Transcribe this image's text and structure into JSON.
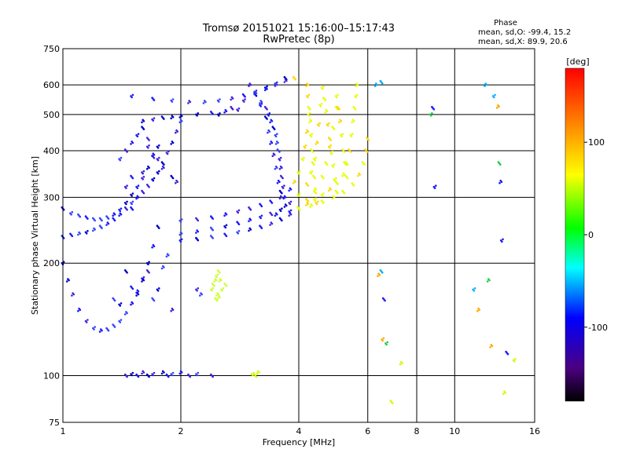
{
  "chart_data": {
    "type": "scatter",
    "title": "Tromsø 20151021 15:16:00–15:17:43",
    "subtitle": "RwPretec (8p)",
    "xlabel": "Frequency [MHz]",
    "ylabel": "Stationary phase Virtual Height [km]",
    "x_scale": "log2",
    "y_scale": "log",
    "xlim": [
      1,
      16
    ],
    "ylim": [
      75,
      750
    ],
    "x_ticks": [
      1,
      2,
      4,
      6,
      8,
      10,
      16
    ],
    "x_tick_labels": [
      "1",
      "2",
      "4",
      "6",
      "8",
      "10",
      "16"
    ],
    "y_ticks": [
      75,
      100,
      200,
      300,
      400,
      500,
      600,
      750
    ],
    "y_tick_labels": [
      "75",
      "100",
      "200",
      "300",
      "400",
      "500",
      "600",
      "750"
    ],
    "grid": true,
    "stats": {
      "header": "Phase",
      "line_o": "mean, sd,O: -99.4, 15.2",
      "line_x": "mean, sd,X:  89.9, 20.6"
    },
    "colorbar": {
      "label": "[deg]",
      "range": [
        -180,
        180
      ],
      "ticks": [
        -100,
        0,
        100
      ],
      "tick_labels": [
        "-100",
        "0",
        "100"
      ],
      "colors": [
        "#000000",
        "#4b0082",
        "#0000ff",
        "#00ffff",
        "#00ff00",
        "#ffff00",
        "#ff8000",
        "#ff0000"
      ]
    },
    "series": [
      {
        "values": [
          [
            1.0,
            235
          ],
          [
            1.05,
            238
          ],
          [
            1.1,
            240
          ],
          [
            1.15,
            242
          ],
          [
            1.2,
            246
          ],
          [
            1.25,
            250
          ],
          [
            1.3,
            255
          ],
          [
            1.35,
            262
          ],
          [
            1.4,
            270
          ],
          [
            1.45,
            280
          ],
          [
            1.5,
            290
          ],
          [
            1.55,
            300
          ],
          [
            1.6,
            310
          ],
          [
            1.65,
            322
          ],
          [
            1.7,
            335
          ],
          [
            1.75,
            350
          ],
          [
            1.8,
            370
          ],
          [
            1.85,
            395
          ],
          [
            1.9,
            420
          ],
          [
            1.95,
            450
          ],
          [
            2.0,
            480
          ]
        ]
      },
      {
        "values": [
          [
            1.0,
            280
          ],
          [
            1.05,
            272
          ],
          [
            1.1,
            268
          ],
          [
            1.15,
            265
          ],
          [
            1.2,
            262
          ],
          [
            1.25,
            262
          ],
          [
            1.3,
            265
          ],
          [
            1.35,
            270
          ],
          [
            1.4,
            278
          ],
          [
            1.45,
            290
          ],
          [
            1.5,
            305
          ],
          [
            1.55,
            320
          ],
          [
            1.6,
            338
          ],
          [
            1.65,
            360
          ],
          [
            1.7,
            385
          ],
          [
            1.75,
            410
          ]
        ]
      },
      {
        "values": [
          [
            1.0,
            200
          ],
          [
            1.03,
            180
          ],
          [
            1.06,
            165
          ],
          [
            1.1,
            150
          ],
          [
            1.15,
            140
          ],
          [
            1.2,
            134
          ],
          [
            1.25,
            132
          ],
          [
            1.3,
            133
          ],
          [
            1.35,
            136
          ],
          [
            1.4,
            140
          ],
          [
            1.45,
            147
          ],
          [
            1.5,
            156
          ],
          [
            1.55,
            168
          ],
          [
            1.6,
            182
          ],
          [
            1.65,
            200
          ],
          [
            1.7,
            222
          ],
          [
            1.75,
            250
          ]
        ]
      },
      {
        "values": [
          [
            1.6,
            480
          ],
          [
            1.7,
            485
          ],
          [
            1.8,
            490
          ],
          [
            1.9,
            492
          ],
          [
            2.0,
            495
          ],
          [
            2.2,
            500
          ],
          [
            2.4,
            505
          ],
          [
            2.6,
            510
          ],
          [
            2.8,
            515
          ]
        ]
      },
      {
        "values": [
          [
            1.5,
            560
          ],
          [
            1.7,
            550
          ],
          [
            1.9,
            545
          ],
          [
            2.1,
            540
          ],
          [
            2.3,
            540
          ],
          [
            2.5,
            545
          ],
          [
            2.7,
            552
          ],
          [
            2.9,
            562
          ],
          [
            3.1,
            575
          ],
          [
            3.3,
            590
          ],
          [
            3.5,
            605
          ],
          [
            3.7,
            625
          ]
        ]
      },
      {
        "values": [
          [
            2.5,
            500
          ],
          [
            2.7,
            520
          ],
          [
            2.9,
            545
          ],
          [
            3.1,
            565
          ],
          [
            3.3,
            585
          ],
          [
            3.5,
            600
          ],
          [
            3.7,
            615
          ],
          [
            3.9,
            625
          ]
        ]
      },
      {
        "values": [
          [
            3.2,
            540
          ],
          [
            3.3,
            520
          ],
          [
            3.35,
            500
          ],
          [
            3.4,
            480
          ],
          [
            3.45,
            460
          ],
          [
            3.5,
            440
          ],
          [
            3.52,
            420
          ],
          [
            3.55,
            400
          ],
          [
            3.58,
            380
          ],
          [
            3.6,
            360
          ],
          [
            3.62,
            340
          ],
          [
            3.65,
            320
          ],
          [
            3.68,
            300
          ],
          [
            3.7,
            285
          ]
        ]
      },
      {
        "values": [
          [
            3.0,
            600
          ],
          [
            3.1,
            570
          ],
          [
            3.2,
            530
          ],
          [
            3.3,
            490
          ],
          [
            3.35,
            450
          ],
          [
            3.4,
            420
          ],
          [
            3.45,
            390
          ],
          [
            3.5,
            360
          ],
          [
            3.55,
            330
          ],
          [
            3.6,
            310
          ]
        ]
      },
      {
        "values": [
          [
            2.0,
            260
          ],
          [
            2.2,
            262
          ],
          [
            2.4,
            265
          ],
          [
            2.6,
            270
          ],
          [
            2.8,
            275
          ],
          [
            3.0,
            280
          ],
          [
            3.2,
            286
          ],
          [
            3.4,
            292
          ],
          [
            3.6,
            300
          ],
          [
            3.8,
            315
          ],
          [
            3.9,
            330
          ],
          [
            4.0,
            350
          ],
          [
            4.1,
            380
          ],
          [
            4.15,
            410
          ],
          [
            4.2,
            450
          ],
          [
            4.25,
            500
          ]
        ]
      },
      {
        "values": [
          [
            2.0,
            240
          ],
          [
            2.2,
            243
          ],
          [
            2.4,
            247
          ],
          [
            2.6,
            251
          ],
          [
            2.8,
            256
          ],
          [
            3.0,
            261
          ],
          [
            3.2,
            266
          ],
          [
            3.4,
            271
          ],
          [
            3.6,
            278
          ],
          [
            3.8,
            290
          ],
          [
            4.0,
            305
          ],
          [
            4.2,
            325
          ],
          [
            4.3,
            350
          ],
          [
            4.4,
            380
          ],
          [
            4.45,
            420
          ],
          [
            4.5,
            470
          ],
          [
            4.55,
            530
          ]
        ]
      },
      {
        "values": [
          [
            2.0,
            230
          ],
          [
            2.2,
            232
          ],
          [
            2.4,
            235
          ],
          [
            2.6,
            238
          ],
          [
            2.8,
            242
          ],
          [
            3.0,
            246
          ],
          [
            3.2,
            250
          ],
          [
            3.4,
            255
          ],
          [
            3.6,
            262
          ],
          [
            3.8,
            270
          ],
          [
            4.0,
            280
          ],
          [
            4.2,
            295
          ],
          [
            4.4,
            315
          ],
          [
            4.6,
            340
          ],
          [
            4.7,
            370
          ],
          [
            4.8,
            410
          ],
          [
            4.9,
            460
          ],
          [
            5.0,
            520
          ]
        ]
      },
      {
        "values": [
          [
            3.5,
            270
          ],
          [
            3.8,
            275
          ],
          [
            4.0,
            280
          ],
          [
            4.3,
            285
          ],
          [
            4.6,
            292
          ],
          [
            4.9,
            300
          ],
          [
            5.2,
            310
          ],
          [
            5.5,
            325
          ],
          [
            5.7,
            345
          ],
          [
            5.85,
            370
          ],
          [
            5.95,
            400
          ],
          [
            6.0,
            430
          ]
        ]
      },
      {
        "values": [
          [
            4.0,
            280
          ],
          [
            4.2,
            288
          ],
          [
            4.4,
            296
          ],
          [
            4.6,
            305
          ],
          [
            4.8,
            315
          ],
          [
            5.0,
            328
          ],
          [
            5.2,
            345
          ],
          [
            5.3,
            370
          ],
          [
            5.4,
            400
          ],
          [
            5.45,
            440
          ],
          [
            5.5,
            480
          ],
          [
            5.55,
            520
          ],
          [
            5.6,
            560
          ],
          [
            5.62,
            600
          ]
        ]
      },
      {
        "values": [
          [
            4.2,
            600
          ],
          [
            4.22,
            560
          ],
          [
            4.25,
            520
          ],
          [
            4.28,
            480
          ],
          [
            4.3,
            440
          ],
          [
            4.32,
            400
          ],
          [
            4.35,
            370
          ],
          [
            4.38,
            340
          ],
          [
            4.4,
            310
          ],
          [
            4.45,
            290
          ]
        ]
      },
      {
        "values": [
          [
            4.6,
            590
          ],
          [
            4.65,
            550
          ],
          [
            4.7,
            510
          ],
          [
            4.75,
            470
          ],
          [
            4.8,
            430
          ],
          [
            4.85,
            395
          ],
          [
            4.9,
            365
          ],
          [
            4.95,
            335
          ],
          [
            5.0,
            310
          ]
        ]
      },
      {
        "values": [
          [
            5.0,
            560
          ],
          [
            5.05,
            520
          ],
          [
            5.1,
            480
          ],
          [
            5.15,
            440
          ],
          [
            5.2,
            400
          ],
          [
            5.25,
            370
          ],
          [
            5.3,
            340
          ]
        ]
      },
      {
        "values": [
          [
            1.45,
            100
          ],
          [
            1.5,
            101
          ],
          [
            1.55,
            100
          ],
          [
            1.6,
            102
          ],
          [
            1.65,
            100
          ],
          [
            1.7,
            101
          ],
          [
            1.8,
            102
          ],
          [
            1.85,
            100
          ],
          [
            1.9,
            101
          ],
          [
            2.0,
            102
          ],
          [
            2.1,
            100
          ],
          [
            2.2,
            101
          ],
          [
            2.4,
            100
          ],
          [
            3.05,
            101
          ],
          [
            3.1,
            100
          ],
          [
            3.15,
            102
          ]
        ]
      },
      {
        "values": [
          [
            2.4,
            170
          ],
          [
            2.42,
            175
          ],
          [
            2.45,
            180
          ],
          [
            2.47,
            185
          ],
          [
            2.5,
            190
          ],
          [
            2.52,
            180
          ],
          [
            2.55,
            170
          ],
          [
            2.48,
            165
          ],
          [
            2.46,
            160
          ],
          [
            2.5,
            162
          ],
          [
            2.2,
            170
          ],
          [
            2.25,
            165
          ],
          [
            2.6,
            175
          ]
        ]
      },
      {
        "values": [
          [
            1.35,
            160
          ],
          [
            1.4,
            155
          ],
          [
            1.5,
            172
          ],
          [
            1.55,
            165
          ],
          [
            1.6,
            180
          ],
          [
            1.65,
            190
          ],
          [
            1.7,
            160
          ],
          [
            1.75,
            170
          ],
          [
            1.8,
            195
          ],
          [
            1.85,
            210
          ],
          [
            1.9,
            150
          ],
          [
            1.45,
            190
          ]
        ]
      },
      {
        "values": [
          [
            1.4,
            380
          ],
          [
            1.45,
            400
          ],
          [
            1.5,
            420
          ],
          [
            1.55,
            440
          ],
          [
            1.6,
            460
          ],
          [
            1.65,
            430
          ],
          [
            1.7,
            390
          ],
          [
            1.6,
            350
          ],
          [
            1.5,
            340
          ],
          [
            1.45,
            320
          ],
          [
            1.55,
            300
          ],
          [
            1.5,
            280
          ],
          [
            1.65,
            410
          ],
          [
            1.75,
            380
          ],
          [
            1.8,
            360
          ],
          [
            1.9,
            340
          ],
          [
            1.95,
            330
          ]
        ]
      },
      {
        "values": [
          [
            6.5,
            190
          ],
          [
            6.6,
            160
          ],
          [
            6.55,
            125
          ],
          [
            6.7,
            122
          ],
          [
            6.9,
            85
          ],
          [
            7.3,
            108
          ],
          [
            6.4,
            186
          ],
          [
            6.3,
            600
          ],
          [
            6.5,
            610
          ]
        ]
      },
      {
        "values": [
          [
            8.8,
            520
          ],
          [
            8.7,
            500
          ],
          [
            8.9,
            320
          ],
          [
            11.2,
            170
          ],
          [
            11.5,
            150
          ],
          [
            12.0,
            600
          ],
          [
            12.2,
            180
          ],
          [
            12.4,
            120
          ],
          [
            12.6,
            560
          ],
          [
            12.9,
            525
          ],
          [
            13.0,
            370
          ],
          [
            13.2,
            230
          ],
          [
            13.6,
            115
          ],
          [
            14.2,
            110
          ],
          [
            13.4,
            90
          ],
          [
            13.1,
            330
          ]
        ]
      }
    ]
  }
}
